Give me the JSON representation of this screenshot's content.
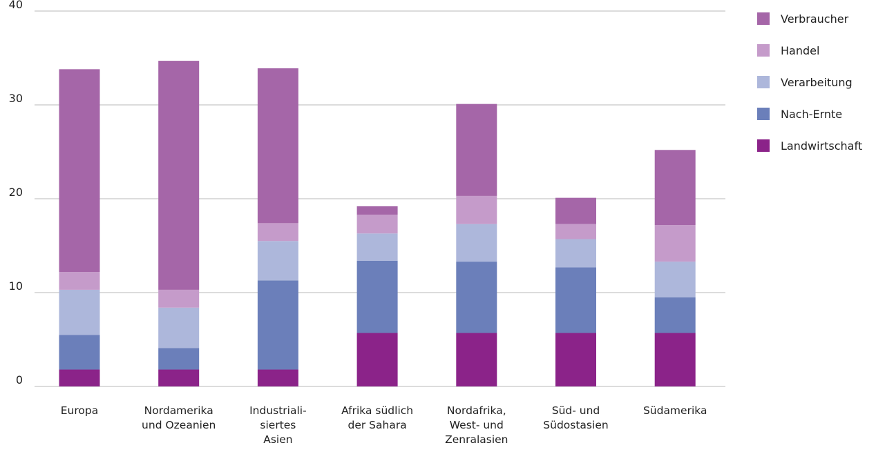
{
  "chart_data": {
    "type": "bar",
    "stacked": true,
    "categories": [
      [
        "Europa"
      ],
      [
        "Nordamerika",
        "und Ozeanien"
      ],
      [
        "Industriali-",
        "siertes",
        "Asien"
      ],
      [
        "Afrika südlich",
        "der Sahara"
      ],
      [
        "Nordafrika,",
        "West- und",
        "Zenralasien"
      ],
      [
        "Süd- und",
        "Südostasien"
      ],
      [
        "Südamerika"
      ]
    ],
    "series": [
      {
        "name": "Landwirtschaft",
        "color": "#8b2389",
        "values": [
          1.8,
          1.8,
          1.8,
          5.7,
          5.7,
          5.7,
          5.7
        ]
      },
      {
        "name": "Nach-Ernte",
        "color": "#6b7fba",
        "values": [
          3.7,
          2.3,
          9.5,
          7.7,
          7.6,
          7.0,
          3.8
        ]
      },
      {
        "name": "Verarbeitung",
        "color": "#adb7db",
        "values": [
          4.8,
          4.3,
          4.2,
          2.9,
          4.0,
          3.0,
          3.8
        ]
      },
      {
        "name": "Handel",
        "color": "#c59bca",
        "values": [
          1.9,
          1.9,
          1.9,
          2.0,
          3.0,
          1.6,
          3.9
        ]
      },
      {
        "name": "Verbraucher",
        "color": "#a566a8",
        "values": [
          21.6,
          24.4,
          16.5,
          0.9,
          9.8,
          2.8,
          8.0
        ]
      }
    ],
    "ylim": [
      0,
      40
    ],
    "yticks": [
      0,
      10,
      20,
      30,
      40
    ],
    "grid": true,
    "legend_position": "right"
  }
}
